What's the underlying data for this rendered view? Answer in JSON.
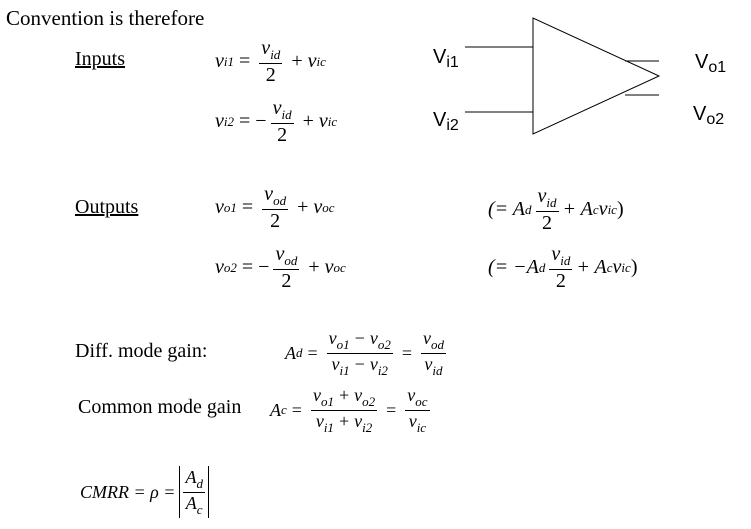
{
  "heading": "Convention is therefore",
  "inputs": {
    "label": "Inputs",
    "vi1": {
      "lhs": "v",
      "lhs_sub": "i1",
      "num": "v",
      "num_sub": "id",
      "den": "2",
      "sign": "",
      "tail": "v",
      "tail_sub": "ic"
    },
    "vi2": {
      "lhs": "v",
      "lhs_sub": "i2",
      "num": "v",
      "num_sub": "id",
      "den": "2",
      "sign": "−",
      "tail": "v",
      "tail_sub": "ic"
    }
  },
  "outputs": {
    "label": "Outputs",
    "vo1": {
      "lhs": "v",
      "lhs_sub": "o1",
      "num": "v",
      "num_sub": "od",
      "den": "2",
      "sign": "",
      "tail": "v",
      "tail_sub": "oc"
    },
    "vo2": {
      "lhs": "v",
      "lhs_sub": "o2",
      "num": "v",
      "num_sub": "od",
      "den": "2",
      "sign": "−",
      "tail": "v",
      "tail_sub": "oc"
    },
    "alt1": {
      "open": "(= A",
      "a_sub": "d",
      "num": "v",
      "num_sub": "id",
      "den": "2",
      "tail": "+ A",
      "tail_sub": "c",
      "v": "v",
      "v_sub": "ic",
      "close": ")"
    },
    "alt2": {
      "open": "(= −A",
      "a_sub": "d",
      "num": "v",
      "num_sub": "id",
      "den": "2",
      "tail": "+ A",
      "tail_sub": "c",
      "v": "v",
      "v_sub": "ic",
      "close": ")"
    }
  },
  "diff_gain": {
    "label": "Diff. mode gain:",
    "lhs": "A",
    "lhs_sub": "d",
    "num1": "v",
    "num1_sub": "o1",
    "num_op": "−",
    "num2": "v",
    "num2_sub": "o2",
    "den1": "v",
    "den1_sub": "i1",
    "den_op": "−",
    "den2": "v",
    "den2_sub": "i2",
    "rnum": "v",
    "rnum_sub": "od",
    "rden": "v",
    "rden_sub": "id"
  },
  "common_gain": {
    "label": "Common mode gain",
    "lhs": "A",
    "lhs_sub": "c",
    "num1": "v",
    "num1_sub": "o1",
    "num_op": "+",
    "num2": "v",
    "num2_sub": "o2",
    "den1": "v",
    "den1_sub": "i1",
    "den_op": "+",
    "den2": "v",
    "den2_sub": "i2",
    "rnum": "v",
    "rnum_sub": "oc",
    "rden": "v",
    "rden_sub": "ic"
  },
  "cmrr": {
    "lhs": "CMRR = ρ =",
    "num": "A",
    "num_sub": "d",
    "den": "A",
    "den_sub": "c"
  },
  "amp": {
    "in1": "V",
    "in1_sub": "i1",
    "in2": "V",
    "in2_sub": "i2",
    "out1": "V",
    "out1_sub": "o1",
    "out2": "V",
    "out2_sub": "o2"
  }
}
